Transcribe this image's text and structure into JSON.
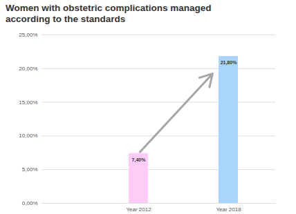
{
  "chart_data": {
    "type": "bar",
    "title": "Women with obstetric complications managed according to the standards",
    "categories": [
      "Year 2012",
      "Year 2018"
    ],
    "values": [
      7.4,
      21.8
    ],
    "value_labels": [
      "7,40%",
      "21,80%"
    ],
    "colors": [
      "#ffccf7",
      "#a9d4fb"
    ],
    "ylim": [
      0,
      25
    ],
    "yticks": [
      {
        "value": 0,
        "label": "0,00%"
      },
      {
        "value": 5,
        "label": "5,00%"
      },
      {
        "value": 10,
        "label": "10,00%"
      },
      {
        "value": 15,
        "label": "15,00%"
      },
      {
        "value": 20,
        "label": "20,00%"
      },
      {
        "value": 25,
        "label": "25,00%"
      }
    ],
    "grid": true,
    "data_labels": true
  }
}
